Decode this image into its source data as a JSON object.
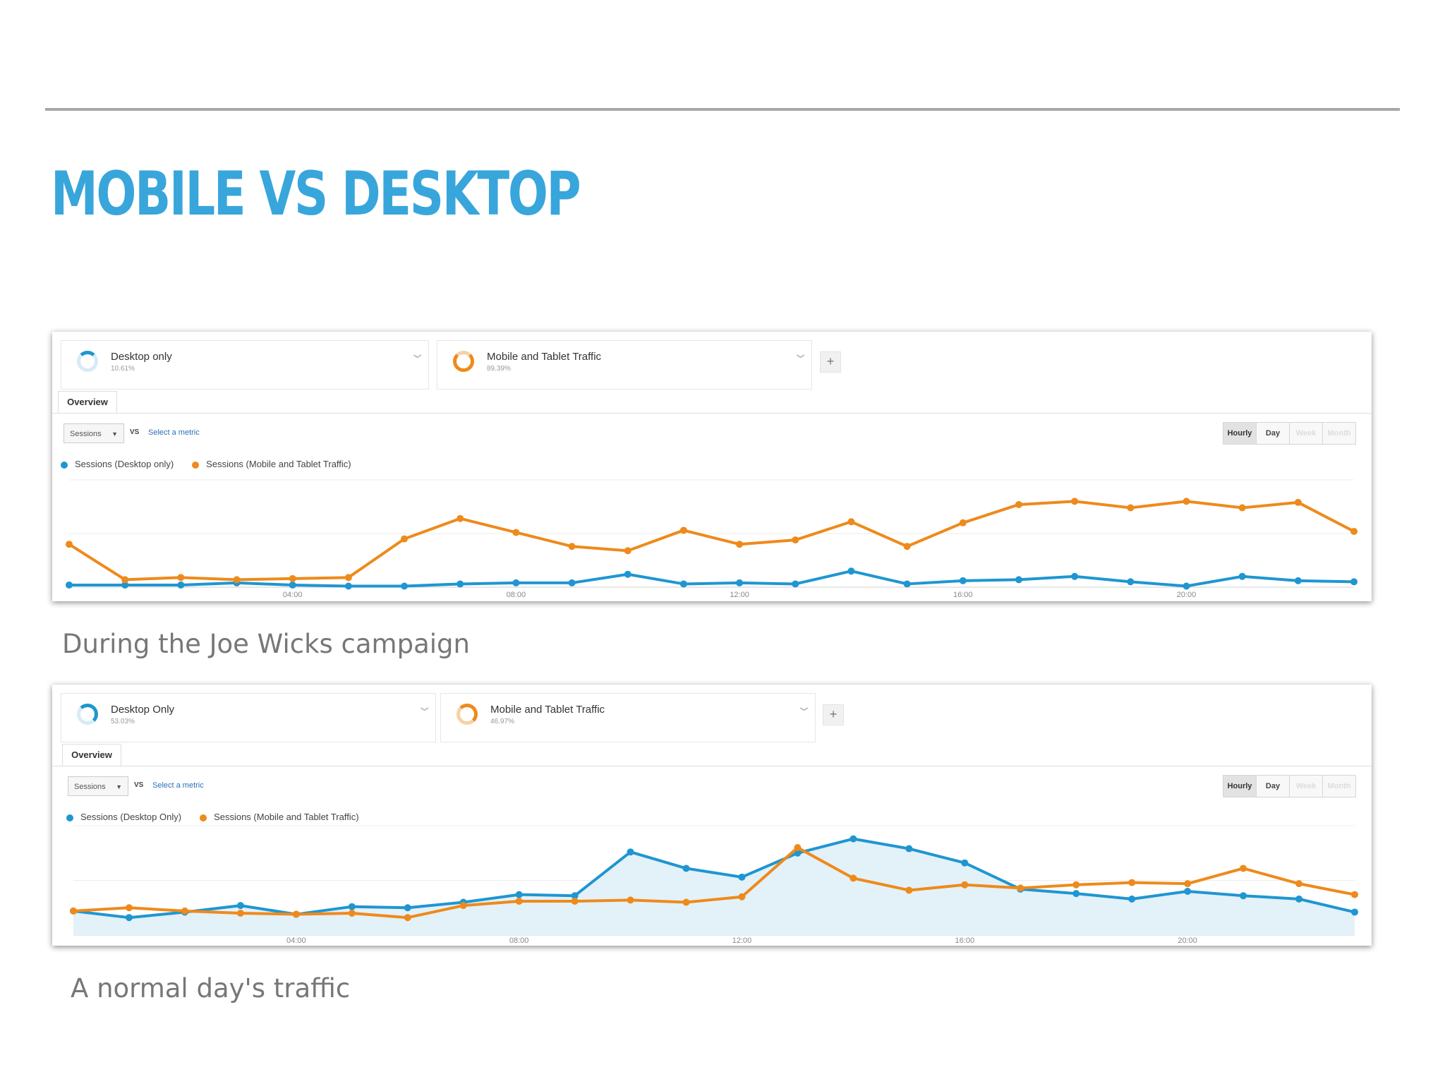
{
  "slide": {
    "title": "MOBILE VS DESKTOP",
    "caption_1": "During the Joe Wicks campaign",
    "caption_2": "A normal day's traffic"
  },
  "colors": {
    "title": "#38a6db",
    "desktop": "#1f96d1",
    "mobile": "#ee8a1b"
  },
  "panels": [
    {
      "segment_a": {
        "name": "Desktop only",
        "percent": "10.61%",
        "ring_fraction": 0.1061
      },
      "segment_b": {
        "name": "Mobile and Tablet Traffic",
        "percent": "89.39%",
        "ring_fraction": 0.8939
      },
      "add_label": "+",
      "tab": "Overview",
      "metric": "Sessions",
      "vs": "VS",
      "select_metric": "Select a metric",
      "buttons": [
        "Hourly",
        "Day",
        "Week",
        "Month"
      ],
      "legend": [
        "Sessions (Desktop only)",
        "Sessions (Mobile and Tablet Traffic)"
      ]
    },
    {
      "segment_a": {
        "name": "Desktop Only",
        "percent": "53.03%",
        "ring_fraction": 0.5303
      },
      "segment_b": {
        "name": "Mobile and Tablet Traffic",
        "percent": "46.97%",
        "ring_fraction": 0.4697
      },
      "add_label": "+",
      "tab": "Overview",
      "metric": "Sessions",
      "vs": "VS",
      "select_metric": "Select a metric",
      "buttons": [
        "Hourly",
        "Day",
        "Week",
        "Month"
      ],
      "legend": [
        "Sessions (Desktop Only)",
        "Sessions (Mobile and Tablet Traffic)"
      ]
    }
  ],
  "chart_data": [
    {
      "type": "line",
      "x": [
        0,
        1,
        2,
        3,
        4,
        5,
        6,
        7,
        8,
        9,
        10,
        11,
        12,
        13,
        14,
        15,
        16,
        17,
        18,
        19,
        20,
        21,
        22,
        23
      ],
      "tick_labels": [
        {
          "x": 4,
          "label": "04:00"
        },
        {
          "x": 8,
          "label": "08:00"
        },
        {
          "x": 12,
          "label": "12:00"
        },
        {
          "x": 16,
          "label": "16:00"
        },
        {
          "x": 20,
          "label": "20:00"
        }
      ],
      "ylim": [
        0,
        100
      ],
      "series": [
        {
          "name": "Sessions (Desktop only)",
          "area": false,
          "values": [
            2,
            2,
            2,
            4,
            2,
            1,
            1,
            3,
            4,
            4,
            12,
            3,
            4,
            3,
            15,
            3,
            6,
            7,
            10,
            5,
            1,
            10,
            6,
            5
          ]
        },
        {
          "name": "Sessions (Mobile and Tablet Traffic)",
          "area": false,
          "values": [
            40,
            7,
            9,
            7,
            8,
            9,
            45,
            64,
            51,
            38,
            34,
            53,
            40,
            44,
            61,
            38,
            60,
            77,
            80,
            74,
            80,
            74,
            79,
            52
          ]
        }
      ]
    },
    {
      "type": "line",
      "x": [
        0,
        1,
        2,
        3,
        4,
        5,
        6,
        7,
        8,
        9,
        10,
        11,
        12,
        13,
        14,
        15,
        16,
        17,
        18,
        19,
        20,
        21,
        22,
        23
      ],
      "tick_labels": [
        {
          "x": 4,
          "label": "04:00"
        },
        {
          "x": 8,
          "label": "08:00"
        },
        {
          "x": 12,
          "label": "12:00"
        },
        {
          "x": 16,
          "label": "16:00"
        },
        {
          "x": 20,
          "label": "20:00"
        }
      ],
      "ylim": [
        0,
        100
      ],
      "series": [
        {
          "name": "Sessions (Desktop Only)",
          "area": true,
          "values": [
            22,
            16,
            21,
            27,
            19,
            26,
            25,
            30,
            37,
            36,
            76,
            61,
            53,
            75,
            88,
            79,
            66,
            42,
            38,
            33,
            40,
            36,
            33,
            21
          ]
        },
        {
          "name": "Sessions (Mobile and Tablet Traffic)",
          "area": false,
          "values": [
            22,
            25,
            22,
            20,
            19,
            20,
            16,
            27,
            31,
            31,
            32,
            30,
            35,
            80,
            52,
            41,
            46,
            43,
            46,
            48,
            47,
            61,
            47,
            37
          ]
        }
      ]
    }
  ]
}
